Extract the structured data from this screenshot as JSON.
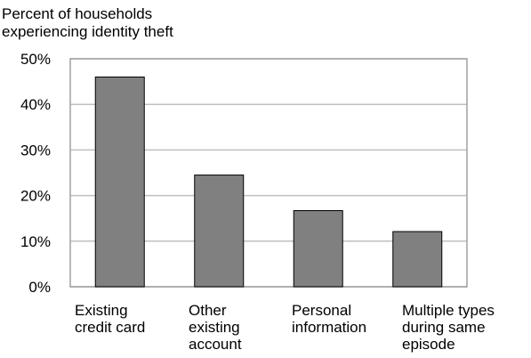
{
  "chart_data": {
    "type": "bar",
    "ylabel_lines": [
      "Percent of households",
      "experiencing identity theft"
    ],
    "xlabel": "",
    "ylim": [
      0,
      50
    ],
    "yticks": [
      0,
      10,
      20,
      30,
      40,
      50
    ],
    "ytick_labels": [
      "0%",
      "10%",
      "20%",
      "30%",
      "40%",
      "50%"
    ],
    "grid": true,
    "categories": [
      [
        "Existing",
        "credit card"
      ],
      [
        "Other",
        "existing",
        "account"
      ],
      [
        "Personal",
        "information"
      ],
      [
        "Multiple types",
        "during same",
        "episode"
      ]
    ],
    "values": [
      46,
      24.5,
      16.7,
      12.1
    ],
    "colors": {
      "bar": "#808080",
      "bar_stroke": "#000000",
      "grid": "#c0c0c0",
      "frame": "#a0a0a0"
    }
  }
}
